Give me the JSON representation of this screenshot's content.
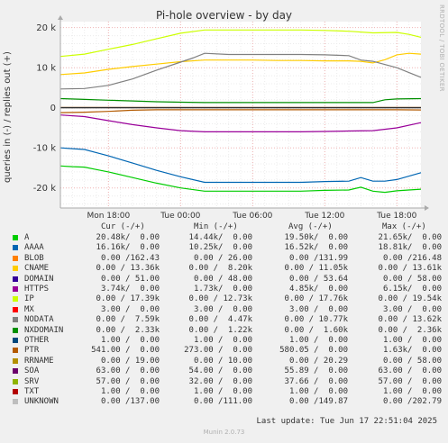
{
  "title": "Pi-hole overview - by day",
  "side_text": "RRDTOOL / TOBI OETIKER",
  "footer": {
    "last_update": "Last update: Tue Jun 17 22:51:04 2025",
    "version": "Munin 2.0.73"
  },
  "legend_headers": {
    "cur": "Cur (-/+)",
    "min": "Min (-/+)",
    "avg": "Avg (-/+)",
    "max": "Max (-/+)"
  },
  "legend": [
    {
      "name": "A",
      "color": "#00cc00",
      "cur": "20.48k/  0.00",
      "min": "14.44k/  0.00",
      "avg": "19.50k/  0.00",
      "max": "21.65k/  0.00"
    },
    {
      "name": "AAAA",
      "color": "#0066b3",
      "cur": "16.16k/  0.00",
      "min": "10.25k/  0.00",
      "avg": "16.52k/  0.00",
      "max": "18.81k/  0.00"
    },
    {
      "name": "BLOB",
      "color": "#ff8000",
      "cur": " 0.00 /162.43",
      "min": " 0.00 / 26.00",
      "avg": " 0.00 /131.99",
      "max": " 0.00 /216.48"
    },
    {
      "name": "CNAME",
      "color": "#ffcc00",
      "cur": " 0.00 / 13.36k",
      "min": " 0.00 /  8.20k",
      "avg": " 0.00 / 11.05k",
      "max": " 0.00 / 13.61k"
    },
    {
      "name": "DOMAIN",
      "color": "#330099",
      "cur": " 0.00 / 51.00",
      "min": " 0.00 / 48.00",
      "avg": " 0.00 / 53.64",
      "max": " 0.00 / 58.00"
    },
    {
      "name": "HTTPS",
      "color": "#990099",
      "cur": " 3.74k/  0.00",
      "min": " 1.73k/  0.00",
      "avg": " 4.85k/  0.00",
      "max": " 6.15k/  0.00"
    },
    {
      "name": "IP",
      "color": "#ccff00",
      "cur": " 0.00 / 17.39k",
      "min": " 0.00 / 12.73k",
      "avg": " 0.00 / 17.76k",
      "max": " 0.00 / 19.54k"
    },
    {
      "name": "MX",
      "color": "#ff0000",
      "cur": " 3.00 /  0.00",
      "min": " 3.00 /  0.00",
      "avg": " 3.00 /  0.00",
      "max": " 3.00 /  0.00"
    },
    {
      "name": "NODATA",
      "color": "#808080",
      "cur": " 0.00 /  7.59k",
      "min": " 0.00 /  4.47k",
      "avg": " 0.00 / 10.77k",
      "max": " 0.00 / 13.62k"
    },
    {
      "name": "NXDOMAIN",
      "color": "#008f00",
      "cur": " 0.00 /  2.33k",
      "min": " 0.00 /  1.22k",
      "avg": " 0.00 /  1.60k",
      "max": " 0.00 /  2.36k"
    },
    {
      "name": "OTHER",
      "color": "#00487d",
      "cur": " 1.00 /  0.00",
      "min": " 1.00 /  0.00",
      "avg": " 1.00 /  0.00",
      "max": " 1.00 /  0.00"
    },
    {
      "name": "PTR",
      "color": "#b35a00",
      "cur": "541.00 /  0.00",
      "min": "273.00 /  0.00",
      "avg": "580.05 /  0.00",
      "max": " 1.63k/  0.00"
    },
    {
      "name": "RRNAME",
      "color": "#b38f00",
      "cur": " 0.00 / 19.00",
      "min": " 0.00 / 10.00",
      "avg": " 0.00 / 20.29",
      "max": " 0.00 / 58.00"
    },
    {
      "name": "SOA",
      "color": "#6b006b",
      "cur": "63.00 /  0.00",
      "min": "54.00 /  0.00",
      "avg": "55.89 /  0.00",
      "max": "63.00 /  0.00"
    },
    {
      "name": "SRV",
      "color": "#8fb300",
      "cur": "57.00 /  0.00",
      "min": "32.00 /  0.00",
      "avg": "37.66 /  0.00",
      "max": "57.00 /  0.00"
    },
    {
      "name": "TXT",
      "color": "#b30000",
      "cur": " 1.00 /  0.00",
      "min": " 1.00 /  0.00",
      "avg": " 1.00 /  0.00",
      "max": " 1.00 /  0.00"
    },
    {
      "name": "UNKNOWN",
      "color": "#bebebe",
      "cur": " 0.00 /137.00",
      "min": " 0.00 /111.00",
      "avg": " 0.00 /149.87",
      "max": " 0.00 /202.79"
    }
  ],
  "chart_data": {
    "type": "line",
    "title": "Pi-hole overview - by day",
    "ylabel": "queries in (-) / replies out (+)",
    "ylim": [
      -25000,
      21500
    ],
    "yticks": [
      -20000,
      -10000,
      0,
      10000,
      20000
    ],
    "ytick_labels": [
      "-20 k",
      "-10 k",
      "0",
      "10 k",
      "20 k"
    ],
    "xlim": [
      0,
      30
    ],
    "xticks": [
      4,
      10,
      16,
      22,
      28
    ],
    "xtick_labels": [
      "Mon 18:00",
      "Tue 00:00",
      "Tue 06:00",
      "Tue 12:00",
      "Tue 18:00"
    ],
    "grid": true,
    "series": [
      {
        "name": "IP",
        "color": "#ccff00",
        "x": [
          0,
          2,
          4,
          6,
          8,
          10,
          12,
          14,
          16,
          18,
          20,
          22,
          24,
          26,
          28,
          29,
          30
        ],
        "y": [
          12800,
          13400,
          14600,
          15800,
          17200,
          18600,
          19400,
          19400,
          19400,
          19400,
          19400,
          19300,
          19100,
          18700,
          18800,
          18300,
          17600
        ]
      },
      {
        "name": "CNAME",
        "color": "#ffcc00",
        "x": [
          0,
          2,
          4,
          6,
          8,
          10,
          12,
          14,
          16,
          18,
          20,
          22,
          24,
          25,
          26,
          27,
          28,
          29,
          30
        ],
        "y": [
          8300,
          8700,
          9600,
          10300,
          10900,
          11500,
          11900,
          11900,
          11900,
          11800,
          11800,
          11700,
          11700,
          11600,
          11200,
          12000,
          13200,
          13600,
          13400
        ]
      },
      {
        "name": "NODATA",
        "color": "#808080",
        "x": [
          0,
          2,
          4,
          6,
          8,
          10,
          11,
          12,
          14,
          16,
          18,
          20,
          22,
          24,
          25,
          26,
          28,
          30
        ],
        "y": [
          4700,
          4800,
          5600,
          7200,
          9400,
          11400,
          12400,
          13600,
          13300,
          13300,
          13300,
          13300,
          13200,
          13000,
          11900,
          11600,
          10000,
          7600
        ]
      },
      {
        "name": "NXDOMAIN",
        "color": "#008f00",
        "x": [
          0,
          2,
          4,
          6,
          8,
          10,
          12,
          14,
          16,
          18,
          20,
          22,
          24,
          26,
          27,
          28,
          30
        ],
        "y": [
          2300,
          2100,
          1900,
          1700,
          1500,
          1400,
          1300,
          1300,
          1300,
          1300,
          1300,
          1300,
          1300,
          1300,
          2000,
          2200,
          2300
        ]
      },
      {
        "name": "BLOB",
        "color": "#ff8000",
        "x": [
          0,
          30
        ],
        "y": [
          160,
          160
        ]
      },
      {
        "name": "UNKNOWN",
        "color": "#bebebe",
        "x": [
          0,
          30
        ],
        "y": [
          137,
          137
        ]
      },
      {
        "name": "PTR",
        "color": "#b35a00",
        "x": [
          0,
          2,
          4,
          6,
          8,
          10,
          12,
          14,
          16,
          18,
          20,
          22,
          24,
          26,
          28,
          30
        ],
        "y": [
          -1200,
          -1100,
          -900,
          -600,
          -500,
          -500,
          -500,
          -500,
          -500,
          -500,
          -500,
          -500,
          -500,
          -500,
          -500,
          -540
        ]
      },
      {
        "name": "HTTPS",
        "color": "#990099",
        "x": [
          0,
          2,
          4,
          6,
          8,
          10,
          12,
          14,
          16,
          18,
          20,
          22,
          24,
          26,
          28,
          30
        ],
        "y": [
          -1800,
          -2200,
          -3200,
          -4200,
          -5000,
          -5700,
          -6000,
          -6000,
          -6000,
          -6000,
          -6000,
          -5900,
          -5800,
          -5700,
          -5000,
          -3700
        ]
      },
      {
        "name": "AAAA",
        "color": "#0066b3",
        "x": [
          0,
          1,
          2,
          3,
          4,
          6,
          8,
          10,
          12,
          14,
          16,
          18,
          20,
          22,
          24,
          25,
          26,
          27,
          28,
          30
        ],
        "y": [
          -10000,
          -10200,
          -10400,
          -11200,
          -12000,
          -13800,
          -15600,
          -17200,
          -18600,
          -18600,
          -18600,
          -18600,
          -18600,
          -18400,
          -18300,
          -17400,
          -18300,
          -18300,
          -17900,
          -16200
        ]
      },
      {
        "name": "A",
        "color": "#00cc00",
        "x": [
          0,
          1,
          2,
          3,
          4,
          6,
          8,
          10,
          12,
          14,
          16,
          18,
          20,
          22,
          24,
          25,
          26,
          27,
          28,
          30
        ],
        "y": [
          -14500,
          -14700,
          -14800,
          -15400,
          -16000,
          -17400,
          -18800,
          -20000,
          -20800,
          -20800,
          -20800,
          -20800,
          -20800,
          -20600,
          -20500,
          -19800,
          -20800,
          -21100,
          -20700,
          -20300
        ]
      }
    ]
  }
}
